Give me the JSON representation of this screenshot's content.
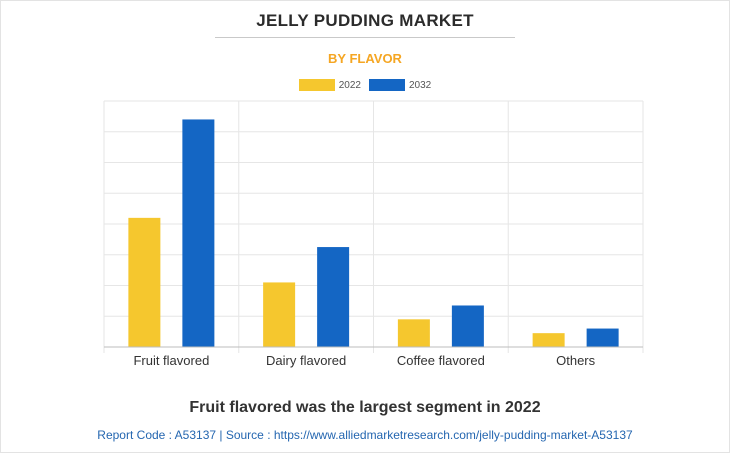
{
  "header": {
    "title": "JELLY PUDDING MARKET",
    "subtitle": "BY FLAVOR"
  },
  "colors": {
    "series_2022": "#F5C72E",
    "series_2032": "#1466C4",
    "subtitle": "#F5A623",
    "grid": "#e6e6e6",
    "axis": "#bdbdbd",
    "text": "#333333"
  },
  "chart_data": {
    "type": "bar",
    "categories": [
      "Fruit flavored",
      "Dairy flavored",
      "Coffee flavored",
      "Others"
    ],
    "series": [
      {
        "name": "2022",
        "values": [
          42,
          21,
          9,
          4.5
        ]
      },
      {
        "name": "2032",
        "values": [
          74,
          32.5,
          13.5,
          6
        ]
      }
    ],
    "ylim": [
      0,
      80
    ],
    "y_gridlines": 8,
    "y_tick_labels_shown": false,
    "grid": true,
    "legend_position": "top-center",
    "xlabel": "",
    "ylabel": ""
  },
  "footer": {
    "headline": "Fruit flavored was the largest segment in 2022",
    "source": "Report Code : A53137  |  Source : https://www.alliedmarketresearch.com/jelly-pudding-market-A53137"
  }
}
